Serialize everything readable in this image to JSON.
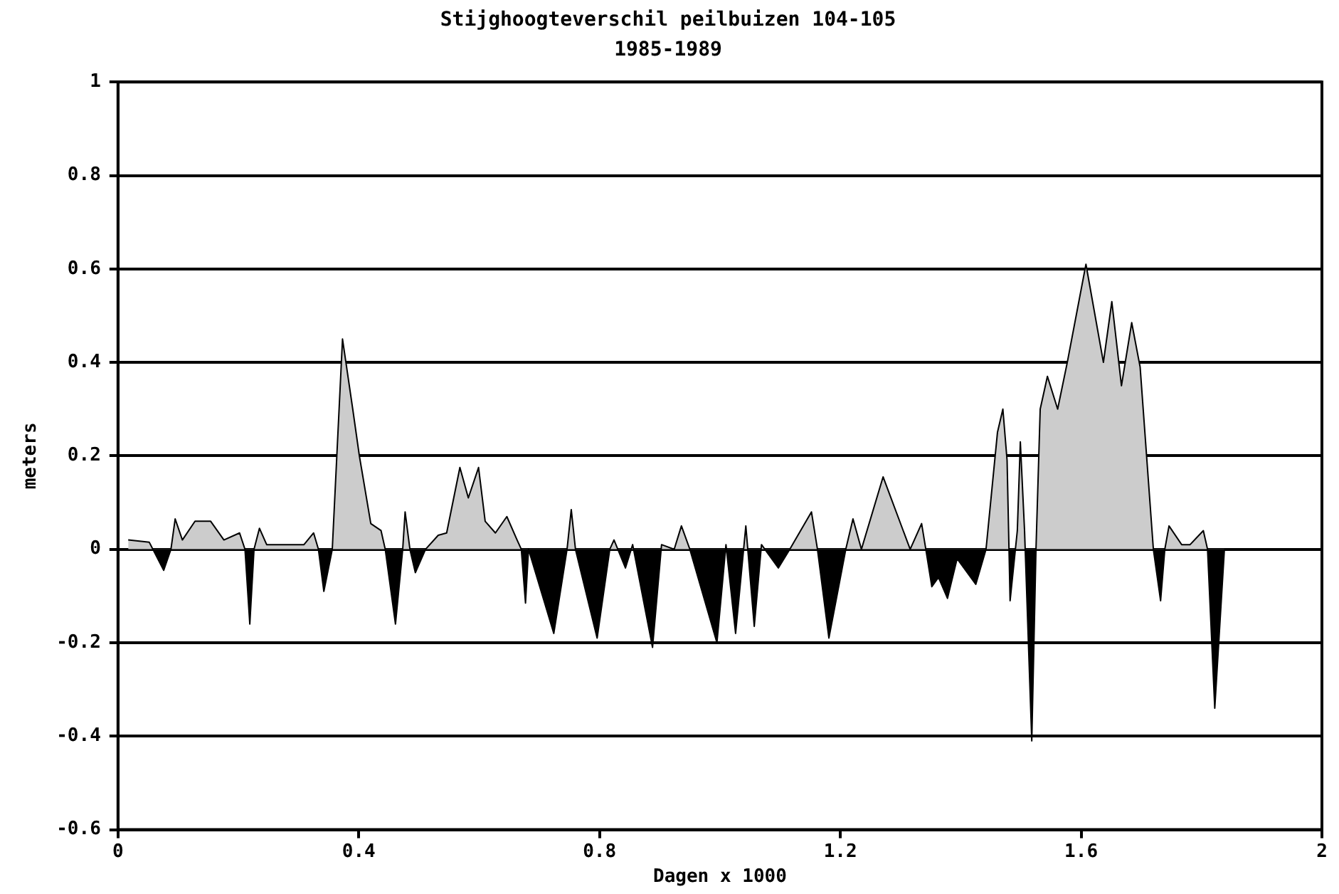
{
  "chart_data": {
    "type": "area",
    "title": "Stijghoogteverschil peilbuizen 104-105",
    "subtitle": "1985-1989",
    "xlabel": "Dagen x 1000",
    "ylabel": "meters",
    "xlim": [
      0,
      2
    ],
    "xticks": [
      0,
      0.4,
      0.8,
      1.2,
      1.6,
      2
    ],
    "ylim": [
      -0.6,
      1
    ],
    "yticks": [
      -0.6,
      -0.4,
      -0.2,
      0,
      0.2,
      0.4,
      0.6,
      0.8,
      1
    ],
    "grid": "y",
    "legend": false,
    "marker": "none",
    "line_style": "solid",
    "series": [
      {
        "color": "#000000",
        "x": [
          0.017,
          0.052,
          0.076,
          0.088,
          0.095,
          0.107,
          0.128,
          0.154,
          0.176,
          0.202,
          0.211,
          0.219,
          0.226,
          0.235,
          0.247,
          0.278,
          0.309,
          0.325,
          0.333,
          0.342,
          0.356,
          0.373,
          0.39,
          0.401,
          0.42,
          0.437,
          0.444,
          0.461,
          0.473,
          0.477,
          0.485,
          0.494,
          0.511,
          0.532,
          0.546,
          0.568,
          0.582,
          0.599,
          0.61,
          0.627,
          0.646,
          0.663,
          0.67,
          0.677,
          0.682,
          0.724,
          0.746,
          0.753,
          0.76,
          0.796,
          0.817,
          0.824,
          0.843,
          0.855,
          0.888,
          0.903,
          0.924,
          0.936,
          0.95,
          0.995,
          1.01,
          1.026,
          1.043,
          1.057,
          1.069,
          1.097,
          1.116,
          1.152,
          1.162,
          1.181,
          1.209,
          1.221,
          1.235,
          1.271,
          1.316,
          1.335,
          1.342,
          1.352,
          1.363,
          1.378,
          1.394,
          1.425,
          1.442,
          1.461,
          1.47,
          1.477,
          1.482,
          1.494,
          1.499,
          1.506,
          1.518,
          1.525,
          1.532,
          1.544,
          1.561,
          1.577,
          1.608,
          1.637,
          1.651,
          1.667,
          1.684,
          1.698,
          1.72,
          1.732,
          1.739,
          1.746,
          1.767,
          1.781,
          1.803,
          1.81,
          1.822,
          1.838
        ],
        "values": [
          0.02,
          0.015,
          -0.045,
          0,
          0.065,
          0.02,
          0.06,
          0.06,
          0.02,
          0.035,
          0,
          -0.16,
          0,
          0.045,
          0.01,
          0.01,
          0.01,
          0.035,
          0,
          -0.09,
          0,
          0.45,
          0.3,
          0.2,
          0.055,
          0.04,
          0,
          -0.16,
          0,
          0.08,
          0,
          -0.05,
          0,
          0.03,
          0.035,
          0.175,
          0.11,
          0.175,
          0.06,
          0.035,
          0.07,
          0.02,
          0,
          -0.115,
          0,
          -0.18,
          0,
          0.085,
          0,
          -0.19,
          0,
          0.02,
          -0.04,
          0.01,
          -0.21,
          0.01,
          0,
          0.05,
          0,
          -0.2,
          0.01,
          -0.18,
          0.05,
          -0.165,
          0.01,
          -0.04,
          0,
          0.08,
          0,
          -0.19,
          0,
          0.065,
          0,
          0.155,
          0,
          0.055,
          0,
          -0.08,
          -0.06,
          -0.105,
          -0.02,
          -0.075,
          0,
          0.25,
          0.3,
          0.19,
          -0.11,
          0.04,
          0.23,
          0.04,
          -0.41,
          0,
          0.3,
          0.37,
          0.3,
          0.4,
          0.61,
          0.4,
          0.53,
          0.35,
          0.485,
          0.39,
          0,
          -0.11,
          0,
          0.05,
          0.01,
          0.01,
          0.04,
          0,
          -0.34,
          0
        ]
      }
    ]
  }
}
